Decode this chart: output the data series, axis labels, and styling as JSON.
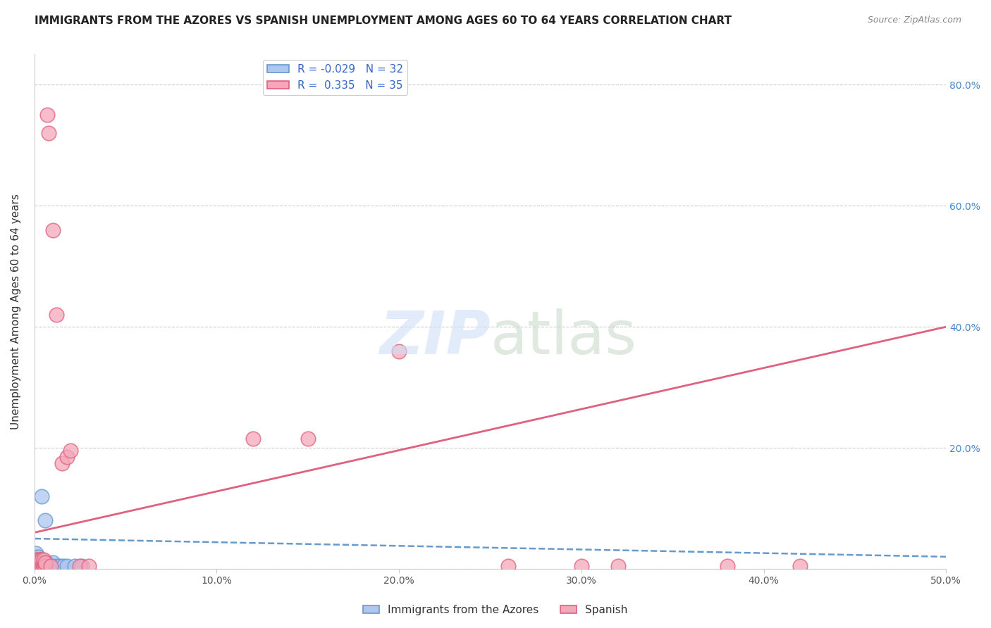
{
  "title": "IMMIGRANTS FROM THE AZORES VS SPANISH UNEMPLOYMENT AMONG AGES 60 TO 64 YEARS CORRELATION CHART",
  "source": "Source: ZipAtlas.com",
  "ylabel": "Unemployment Among Ages 60 to 64 years",
  "xlim": [
    0.0,
    0.5
  ],
  "ylim": [
    0.0,
    0.85
  ],
  "xticks": [
    0.0,
    0.1,
    0.2,
    0.3,
    0.4,
    0.5
  ],
  "xticklabels": [
    "0.0%",
    "10.0%",
    "20.0%",
    "30.0%",
    "40.0%",
    "50.0%"
  ],
  "yticks": [
    0.0,
    0.2,
    0.4,
    0.6,
    0.8
  ],
  "yticklabels_right": [
    "",
    "20.0%",
    "40.0%",
    "60.0%",
    "80.0%"
  ],
  "azores_R": "-0.029",
  "azores_N": "32",
  "spanish_R": "0.335",
  "spanish_N": "35",
  "azores_color": "#aec6f0",
  "spanish_color": "#f4a7b9",
  "azores_line_color": "#6699cc",
  "spanish_line_color": "#e06080",
  "background_color": "#ffffff",
  "legend_label_azores": "Immigrants from the Azores",
  "legend_label_spanish": "Spanish",
  "azores_x": [
    0.001,
    0.001,
    0.001,
    0.001,
    0.001,
    0.002,
    0.002,
    0.002,
    0.002,
    0.002,
    0.003,
    0.003,
    0.003,
    0.004,
    0.004,
    0.004,
    0.005,
    0.005,
    0.006,
    0.006,
    0.007,
    0.007,
    0.008,
    0.009,
    0.01,
    0.01,
    0.012,
    0.014,
    0.016,
    0.018,
    0.022,
    0.026
  ],
  "azores_y": [
    0.005,
    0.01,
    0.015,
    0.02,
    0.025,
    0.005,
    0.008,
    0.012,
    0.015,
    0.02,
    0.005,
    0.01,
    0.015,
    0.005,
    0.01,
    0.12,
    0.005,
    0.01,
    0.005,
    0.08,
    0.005,
    0.01,
    0.005,
    0.005,
    0.005,
    0.01,
    0.005,
    0.005,
    0.005,
    0.005,
    0.005,
    0.005
  ],
  "spanish_x": [
    0.001,
    0.001,
    0.001,
    0.002,
    0.002,
    0.002,
    0.003,
    0.003,
    0.003,
    0.004,
    0.004,
    0.004,
    0.005,
    0.005,
    0.005,
    0.006,
    0.006,
    0.007,
    0.008,
    0.009,
    0.01,
    0.012,
    0.015,
    0.018,
    0.02,
    0.025,
    0.03,
    0.12,
    0.15,
    0.2,
    0.26,
    0.3,
    0.32,
    0.38,
    0.42
  ],
  "spanish_y": [
    0.005,
    0.01,
    0.015,
    0.005,
    0.01,
    0.015,
    0.005,
    0.01,
    0.015,
    0.005,
    0.01,
    0.015,
    0.005,
    0.01,
    0.015,
    0.005,
    0.01,
    0.75,
    0.72,
    0.005,
    0.56,
    0.42,
    0.175,
    0.185,
    0.195,
    0.005,
    0.005,
    0.215,
    0.215,
    0.36,
    0.005,
    0.005,
    0.005,
    0.005,
    0.005
  ],
  "azores_trend_x": [
    0.0,
    0.5
  ],
  "azores_trend_y": [
    0.05,
    0.02
  ],
  "spanish_trend_x": [
    0.0,
    0.5
  ],
  "spanish_trend_y": [
    0.06,
    0.4
  ],
  "title_fontsize": 11,
  "source_fontsize": 9,
  "axis_label_fontsize": 11,
  "tick_fontsize": 10,
  "legend_fontsize": 11
}
